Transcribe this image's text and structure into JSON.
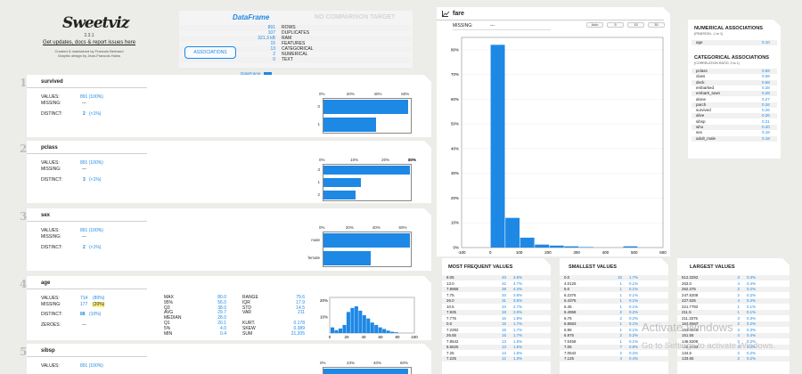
{
  "header": {
    "logo": "Sweetviz",
    "version": "2.3.1",
    "link": "Get updates, docs & report issues here",
    "credit1": "Created & maintained by Francois Bertrand",
    "credit2": "Graphic design by Jean-Francois Hains"
  },
  "dataframe": {
    "title": "DataFrame",
    "no_target": "NO COMPARISON TARGET",
    "associations_button": "ASSOCIATIONS",
    "legend": "DataFrame",
    "rows": [
      {
        "value": "891",
        "label": "ROWS"
      },
      {
        "value": "107",
        "label": "DUPLICATES"
      },
      {
        "value": "321.3 kB",
        "label": "RAM"
      },
      {
        "value": "15",
        "label": "FEATURES"
      },
      {
        "value": "13",
        "label": "CATEGORICAL"
      },
      {
        "value": "2",
        "label": "NUMERICAL"
      },
      {
        "value": "0",
        "label": "TEXT"
      }
    ]
  },
  "variables": [
    {
      "num": "1",
      "name": "survived",
      "values": "891 (100%)",
      "missing": "---",
      "distinct": "2",
      "distinct_pct": "(<1%)",
      "ticks": [
        "0%",
        "20%",
        "40%",
        "60%"
      ],
      "labels": [
        "0",
        "1"
      ],
      "values_pct": [
        61.6,
        38.4
      ],
      "max_pct": 65
    },
    {
      "num": "2",
      "name": "pclass",
      "values": "891 (100%)",
      "missing": "---",
      "distinct": "3",
      "distinct_pct": "(<1%)",
      "ticks": [
        "0%",
        "10%",
        "20%",
        "30%",
        "40%",
        "50%"
      ],
      "labels": [
        "3",
        "1",
        "2"
      ],
      "values_pct": [
        55.1,
        24.2,
        20.7
      ],
      "max_pct": 57
    },
    {
      "num": "3",
      "name": "sex",
      "values": "891 (100%)",
      "missing": "---",
      "distinct": "2",
      "distinct_pct": "(<1%)",
      "ticks": [
        "0%",
        "20%",
        "40%",
        "60%"
      ],
      "labels": [
        "male",
        "female"
      ],
      "values_pct": [
        64.8,
        35.2
      ],
      "max_pct": 67
    }
  ],
  "age": {
    "num": "4",
    "name": "age",
    "values": "714",
    "values_pct": "(80%)",
    "missing": "177",
    "missing_pct": "(20%)",
    "distinct": "88",
    "distinct_pct": "(10%)",
    "zeroes": "---",
    "stats1": [
      [
        "MAX",
        "80.0"
      ],
      [
        "95%",
        "56.0"
      ],
      [
        "Q3",
        "38.0"
      ],
      [
        "AVG",
        "29.7"
      ],
      [
        "MEDIAN",
        "28.0"
      ],
      [
        "Q1",
        "20.1"
      ],
      [
        "5%",
        "4.0"
      ],
      [
        "MIN",
        "0.4"
      ]
    ],
    "stats2": [
      [
        "RANGE",
        "79.6"
      ],
      [
        "IQR",
        "17.9"
      ],
      [
        "STD",
        "14.5"
      ],
      [
        "VAR",
        "211"
      ],
      [
        "KURT.",
        "0.178"
      ],
      [
        "SKEW",
        "0.389"
      ],
      [
        "SUM",
        "21,205"
      ]
    ],
    "hist_x": [
      "0",
      "20",
      "40",
      "60",
      "80",
      "100"
    ],
    "hist_y": [
      "10%",
      "20%"
    ],
    "hist": [
      3.5,
      1.8,
      2.8,
      5.0,
      13.0,
      15.5,
      16.5,
      13.8,
      11.0,
      9.0,
      6.5,
      5.0,
      3.5,
      2.5,
      1.5,
      0.8,
      0.5
    ]
  },
  "sibsp": {
    "num": "5",
    "name": "sibsp",
    "values": "891 (100%)",
    "ticks": [
      "0%",
      "23%",
      "40%",
      "60%"
    ]
  },
  "labels": {
    "values": "VALUES:",
    "missing": "MISSING:",
    "distinct": "DISTINCT:",
    "zeroes": "ZEROES:"
  },
  "fare": {
    "title": "fare",
    "missing_label": "MISSING:",
    "missing_value": "---",
    "buttons": [
      "Auto",
      "5",
      "15",
      "30"
    ],
    "y_ticks": [
      "0%",
      "10%",
      "20%",
      "30%",
      "40%",
      "50%",
      "60%",
      "70%",
      "80%"
    ],
    "x_ticks": [
      "-100",
      "0",
      "100",
      "200",
      "300",
      "400",
      "500",
      "600"
    ],
    "chart_data": {
      "type": "bar",
      "x": [
        0,
        51.2,
        102.5,
        153.7,
        204.9,
        256.2,
        307.4,
        358.6,
        409.9,
        461.1
      ],
      "values": [
        82.0,
        12.0,
        4.0,
        1.2,
        0.8,
        0.5,
        0.2,
        0.0,
        0.0,
        0.5
      ],
      "xlim": [
        -100,
        600
      ],
      "ylim": [
        0,
        85
      ]
    }
  },
  "numerical_assoc": {
    "title": "NUMERICAL ASSOCIATIONS",
    "subtitle": "(PEARSON, -1 to 1)",
    "items": [
      {
        "name": "age",
        "value": "0.10"
      }
    ]
  },
  "categorical_assoc": {
    "title": "CATEGORICAL ASSOCIATIONS",
    "subtitle": "(CORRELATION RATIO, 0 to 1)",
    "items": [
      {
        "name": "pclass",
        "value": "0.59"
      },
      {
        "name": "class",
        "value": "0.59"
      },
      {
        "name": "deck",
        "value": "0.58"
      },
      {
        "name": "embarked",
        "value": "0.28"
      },
      {
        "name": "embark_town",
        "value": "0.28"
      },
      {
        "name": "alone",
        "value": "0.27"
      },
      {
        "name": "parch",
        "value": "0.26"
      },
      {
        "name": "survived",
        "value": "0.26"
      },
      {
        "name": "alive",
        "value": "0.26"
      },
      {
        "name": "sibsp",
        "value": "0.21"
      },
      {
        "name": "who",
        "value": "0.20"
      },
      {
        "name": "sex",
        "value": "0.18"
      },
      {
        "name": "adult_male",
        "value": "0.18"
      }
    ]
  },
  "most_frequent": {
    "title": "MOST FREQUENT VALUES",
    "rows": [
      [
        "8.05",
        "43",
        "4.8%"
      ],
      [
        "13.0",
        "42",
        "4.7%"
      ],
      [
        "7.8958",
        "38",
        "4.3%"
      ],
      [
        "7.75",
        "34",
        "3.8%"
      ],
      [
        "26.0",
        "31",
        "3.5%"
      ],
      [
        "10.5",
        "24",
        "2.7%"
      ],
      [
        "7.925",
        "18",
        "2.0%"
      ],
      [
        "7.775",
        "16",
        "1.8%"
      ],
      [
        "0.0",
        "15",
        "1.7%"
      ],
      [
        "7.2292",
        "15",
        "1.7%"
      ],
      [
        "26.55",
        "15",
        "1.7%"
      ],
      [
        "7.8542",
        "13",
        "1.5%"
      ],
      [
        "8.6625",
        "13",
        "1.5%"
      ],
      [
        "7.25",
        "13",
        "1.5%"
      ],
      [
        "7.225",
        "12",
        "1.3%"
      ]
    ]
  },
  "smallest": {
    "title": "SMALLEST VALUES",
    "rows": [
      [
        "0.0",
        "15",
        "1.7%"
      ],
      [
        "4.0125",
        "1",
        "0.1%"
      ],
      [
        "5.0",
        "1",
        "0.1%"
      ],
      [
        "6.2375",
        "1",
        "0.1%"
      ],
      [
        "6.4375",
        "1",
        "0.1%"
      ],
      [
        "6.45",
        "1",
        "0.1%"
      ],
      [
        "6.4958",
        "2",
        "0.2%"
      ],
      [
        "6.75",
        "2",
        "0.2%"
      ],
      [
        "6.8583",
        "1",
        "0.1%"
      ],
      [
        "6.95",
        "1",
        "0.1%"
      ],
      [
        "6.975",
        "2",
        "0.2%"
      ],
      [
        "7.0458",
        "1",
        "0.1%"
      ],
      [
        "7.05",
        "7",
        "0.8%"
      ],
      [
        "7.0542",
        "2",
        "0.2%"
      ],
      [
        "7.125",
        "4",
        "0.4%"
      ]
    ]
  },
  "largest": {
    "title": "LARGEST VALUES",
    "rows": [
      [
        "512.3292",
        "3",
        "0.3%"
      ],
      [
        "263.0",
        "4",
        "0.4%"
      ],
      [
        "262.375",
        "2",
        "0.2%"
      ],
      [
        "247.5208",
        "2",
        "0.2%"
      ],
      [
        "227.525",
        "4",
        "0.4%"
      ],
      [
        "221.7792",
        "1",
        "0.1%"
      ],
      [
        "211.5",
        "1",
        "0.1%"
      ],
      [
        "211.3375",
        "3",
        "0.3%"
      ],
      [
        "164.8667",
        "2",
        "0.2%"
      ],
      [
        "153.4625",
        "3",
        "0.3%"
      ],
      [
        "151.55",
        "4",
        "0.4%"
      ],
      [
        "146.5208",
        "2",
        "0.2%"
      ],
      [
        "135.6333",
        "3",
        "0.3%"
      ],
      [
        "134.5",
        "2",
        "0.2%"
      ],
      [
        "133.65",
        "2",
        "0.2%"
      ]
    ]
  },
  "watermark": {
    "line1": "Activate Windows",
    "line2": "Go to Settings to activate Windows."
  }
}
